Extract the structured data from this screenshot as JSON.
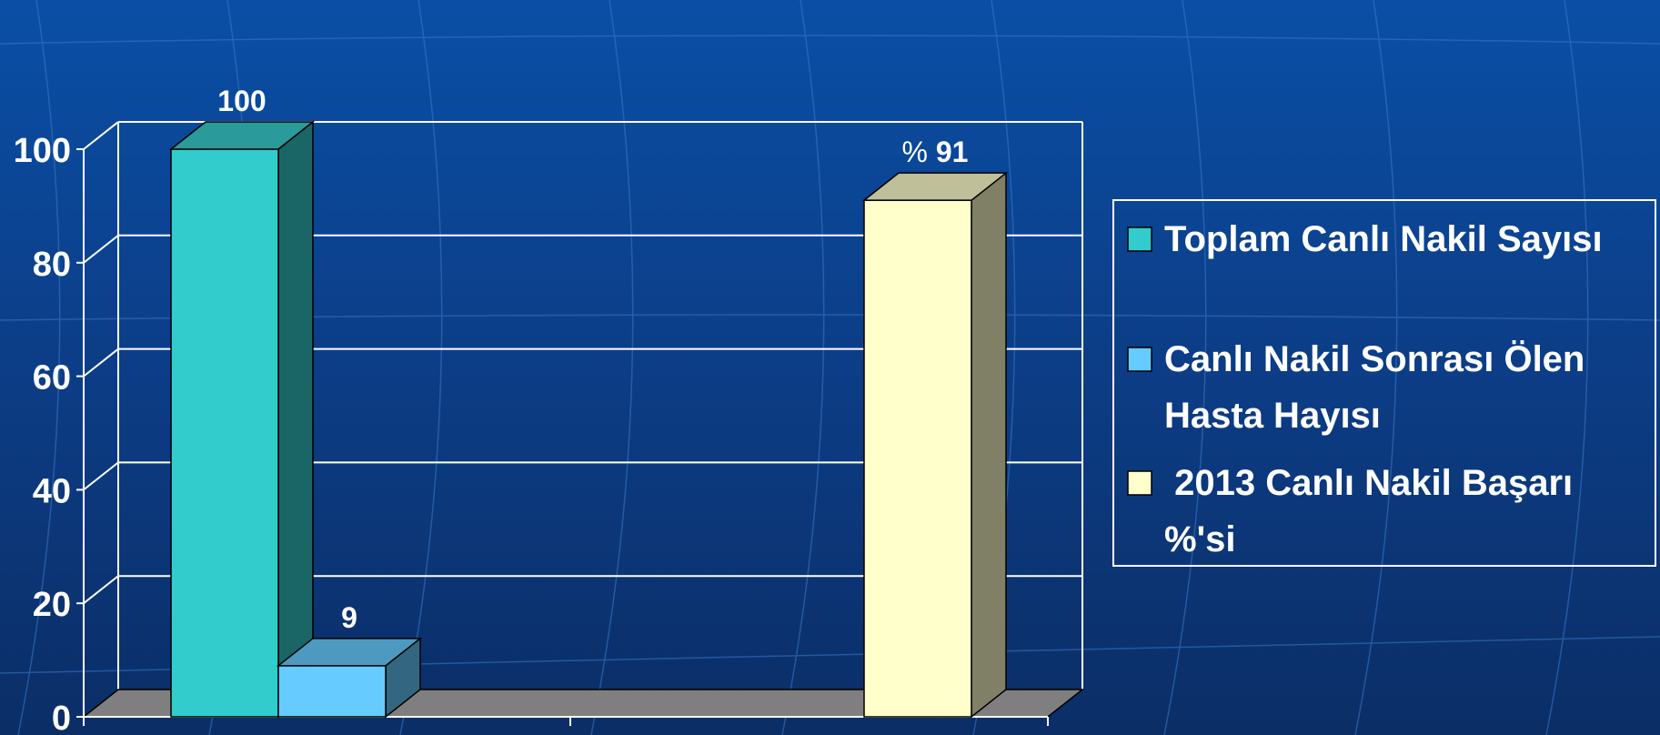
{
  "chart_data": {
    "type": "bar",
    "categories": [
      ""
    ],
    "ylim": [
      0,
      100
    ],
    "yticks": [
      0,
      20,
      40,
      60,
      80,
      100
    ],
    "grid": true,
    "legend_position": "right",
    "series": [
      {
        "name": "Toplam Canlı Nakil Sayısı",
        "value": 100,
        "label": "100",
        "color": "#33cccc",
        "side_color": "#1a6666",
        "top_color": "#2a9a9a",
        "group": 0
      },
      {
        "name": "Canlı Nakil Sonrası Ölen Hasta Hayısı",
        "value": 9,
        "label": "9",
        "color": "#66ccff",
        "side_color": "#336680",
        "top_color": "#4d99c0",
        "group": 0
      },
      {
        "name": " 2013 Canlı Nakil Başarı %'si",
        "value": 91,
        "label_prefix": "%",
        "label": "91",
        "color": "#ffffcc",
        "side_color": "#808066",
        "top_color": "#bfbf99",
        "group": 1
      }
    ],
    "legend_lines": [
      [
        "Toplam Canlı Nakil Sayısı"
      ],
      [
        "Canlı Nakil Sonrası Ölen",
        "Hasta Hayısı"
      ],
      [
        " 2013 Canlı Nakil Başarı",
        "%'si"
      ]
    ]
  },
  "colors": {
    "background_top": "#0a4a9c",
    "background_bottom": "#0d2f6a",
    "grid": "#ffffff",
    "floor": "#7f7f7f",
    "text": "#ffffff"
  }
}
